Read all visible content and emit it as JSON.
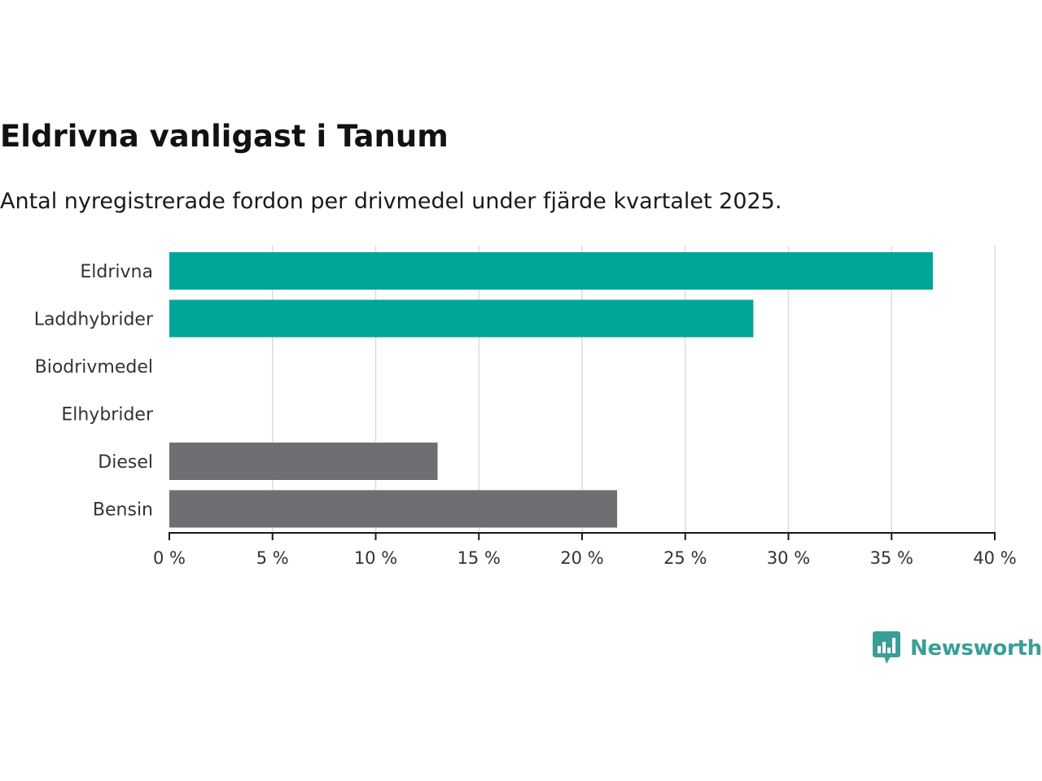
{
  "chart_data": {
    "type": "bar",
    "orientation": "horizontal",
    "title": "Eldrivna vanligast i Tanum",
    "subtitle": "Antal nyregistrerade fordon per drivmedel under fjärde kvartalet 2025.",
    "categories": [
      "Eldrivna",
      "Laddhybrider",
      "Biodrivmedel",
      "Elhybrider",
      "Diesel",
      "Bensin"
    ],
    "values": [
      37.0,
      28.3,
      0,
      0,
      13.0,
      21.7
    ],
    "bar_colors": [
      "#00a59a",
      "#00a59a",
      "#00a59a",
      "#00a59a",
      "#6f6e73",
      "#6f6e73"
    ],
    "xlim": [
      0,
      40
    ],
    "xticks": [
      0,
      5,
      10,
      15,
      20,
      25,
      30,
      35,
      40
    ],
    "xtick_labels": [
      "0 %",
      "5 %",
      "10 %",
      "15 %",
      "20 %",
      "25 %",
      "30 %",
      "35 %",
      "40 %"
    ],
    "grid": true,
    "xlabel": "",
    "ylabel": ""
  },
  "brand": {
    "name": "Newsworthy",
    "color": "#3a9e98"
  }
}
